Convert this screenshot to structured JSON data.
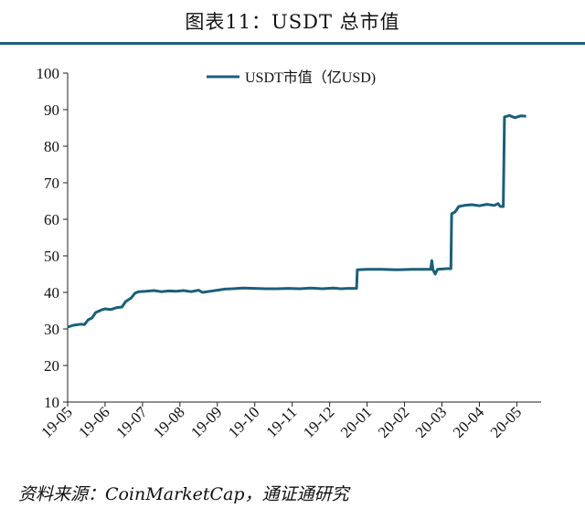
{
  "header": {
    "title": "图表11：USDT 总市值"
  },
  "footer": {
    "source": "资料来源：CoinMarketCap，通证通研究"
  },
  "chart_data": {
    "type": "line",
    "x_tick_labels": [
      "19-05",
      "19-06",
      "19-07",
      "19-08",
      "19-09",
      "19-10",
      "19-11",
      "19-12",
      "20-01",
      "20-02",
      "20-03",
      "20-04",
      "20-05"
    ],
    "y_ticks": [
      10,
      20,
      30,
      40,
      50,
      60,
      70,
      80,
      90,
      100
    ],
    "ylim": [
      10,
      100
    ],
    "xlim": [
      0,
      12.65
    ],
    "grid": false,
    "legend_position": "top-center",
    "series": [
      {
        "name": "USDT市值（亿USD)",
        "color": "#1a5f7a",
        "points": [
          [
            0.0,
            30.5
          ],
          [
            0.15,
            31.0
          ],
          [
            0.35,
            31.3
          ],
          [
            0.45,
            31.2
          ],
          [
            0.55,
            32.5
          ],
          [
            0.65,
            33.0
          ],
          [
            0.75,
            34.5
          ],
          [
            0.9,
            35.2
          ],
          [
            1.0,
            35.5
          ],
          [
            1.15,
            35.3
          ],
          [
            1.3,
            35.8
          ],
          [
            1.45,
            36.0
          ],
          [
            1.55,
            37.5
          ],
          [
            1.7,
            38.5
          ],
          [
            1.8,
            39.8
          ],
          [
            1.9,
            40.2
          ],
          [
            2.1,
            40.3
          ],
          [
            2.3,
            40.5
          ],
          [
            2.5,
            40.2
          ],
          [
            2.7,
            40.4
          ],
          [
            2.9,
            40.3
          ],
          [
            3.1,
            40.5
          ],
          [
            3.3,
            40.2
          ],
          [
            3.5,
            40.6
          ],
          [
            3.6,
            40.0
          ],
          [
            3.8,
            40.3
          ],
          [
            4.0,
            40.6
          ],
          [
            4.2,
            40.9
          ],
          [
            4.4,
            41.0
          ],
          [
            4.7,
            41.2
          ],
          [
            5.0,
            41.1
          ],
          [
            5.3,
            41.0
          ],
          [
            5.6,
            41.0
          ],
          [
            5.9,
            41.1
          ],
          [
            6.2,
            41.0
          ],
          [
            6.5,
            41.2
          ],
          [
            6.8,
            41.0
          ],
          [
            7.1,
            41.2
          ],
          [
            7.3,
            41.0
          ],
          [
            7.5,
            41.1
          ],
          [
            7.72,
            41.1
          ],
          [
            7.74,
            46.2
          ],
          [
            8.0,
            46.3
          ],
          [
            8.4,
            46.3
          ],
          [
            8.8,
            46.2
          ],
          [
            9.2,
            46.3
          ],
          [
            9.5,
            46.3
          ],
          [
            9.7,
            46.3
          ],
          [
            9.73,
            48.7
          ],
          [
            9.76,
            46.2
          ],
          [
            9.82,
            45.0
          ],
          [
            9.88,
            46.3
          ],
          [
            10.0,
            46.4
          ],
          [
            10.15,
            46.5
          ],
          [
            10.24,
            46.5
          ],
          [
            10.26,
            61.5
          ],
          [
            10.35,
            62.0
          ],
          [
            10.45,
            63.5
          ],
          [
            10.6,
            63.8
          ],
          [
            10.8,
            64.0
          ],
          [
            11.0,
            63.7
          ],
          [
            11.2,
            64.1
          ],
          [
            11.4,
            63.8
          ],
          [
            11.5,
            64.3
          ],
          [
            11.56,
            63.5
          ],
          [
            11.64,
            63.5
          ],
          [
            11.67,
            88.0
          ],
          [
            11.8,
            88.4
          ],
          [
            11.95,
            87.8
          ],
          [
            12.1,
            88.3
          ],
          [
            12.25,
            88.2
          ]
        ]
      }
    ]
  }
}
